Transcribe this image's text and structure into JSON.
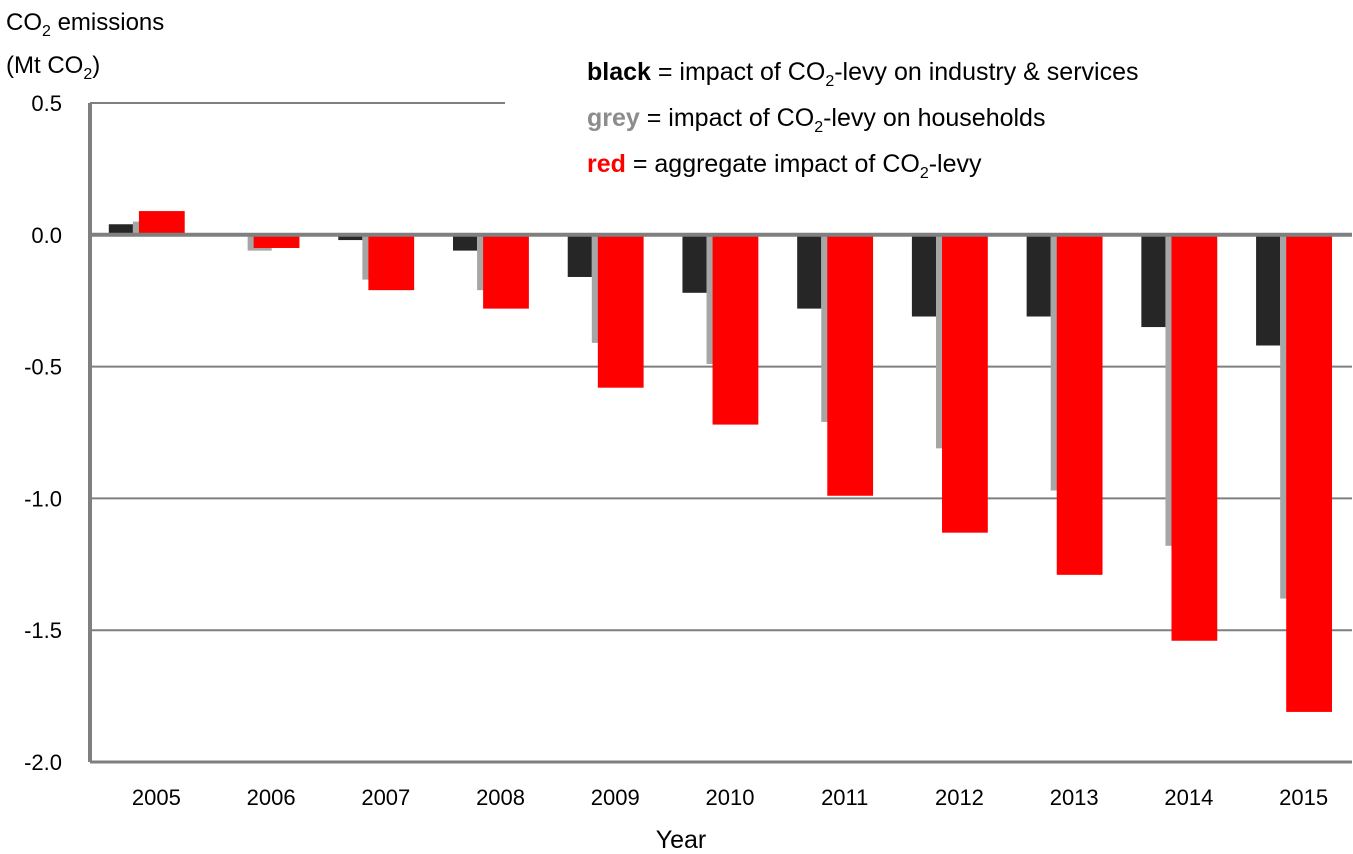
{
  "y_title": {
    "line1_prefix": "CO",
    "line1_sub": "2",
    "line1_suffix": " emissions",
    "line2_prefix": "(Mt CO",
    "line2_sub": "2",
    "line2_suffix": ")"
  },
  "legend": [
    {
      "keyword": "black",
      "before_sub": " = impact of CO",
      "sub": "2",
      "after_sub": "-levy on industry & services",
      "color": "#262626"
    },
    {
      "keyword": "grey",
      "before_sub": " = impact of CO",
      "sub": "2",
      "after_sub": "-levy on households",
      "color": "#a6a6a6"
    },
    {
      "keyword": "red",
      "before_sub": " = aggregate impact of CO",
      "sub": "2",
      "after_sub": "-levy",
      "color": "#ff0000"
    }
  ],
  "chart_data": {
    "type": "bar",
    "categories": [
      "2005",
      "2006",
      "2007",
      "2008",
      "2009",
      "2010",
      "2011",
      "2012",
      "2013",
      "2014",
      "2015"
    ],
    "series": [
      {
        "color": "#262626",
        "values": [
          0.04,
          0.0,
          -0.02,
          -0.06,
          -0.16,
          -0.22,
          -0.28,
          -0.31,
          -0.31,
          -0.35,
          -0.42
        ]
      },
      {
        "color": "#a6a6a6",
        "values": [
          0.05,
          -0.06,
          -0.17,
          -0.21,
          -0.41,
          -0.49,
          -0.71,
          -0.81,
          -0.97,
          -1.18,
          -1.38
        ]
      },
      {
        "color": "#ff0000",
        "values": [
          0.09,
          -0.05,
          -0.21,
          -0.28,
          -0.58,
          -0.72,
          -0.99,
          -1.13,
          -1.29,
          -1.54,
          -1.81
        ]
      }
    ],
    "yticks": [
      "0.5",
      "0.0",
      "-0.5",
      "-1.0",
      "-1.5",
      "-2.0"
    ],
    "ytick_values": [
      0.5,
      0.0,
      -0.5,
      -1.0,
      -1.5,
      -2.0
    ],
    "ylim": [
      -2.0,
      0.5
    ],
    "xlabel": "Year",
    "grid": true,
    "legend_position": "top-right"
  }
}
